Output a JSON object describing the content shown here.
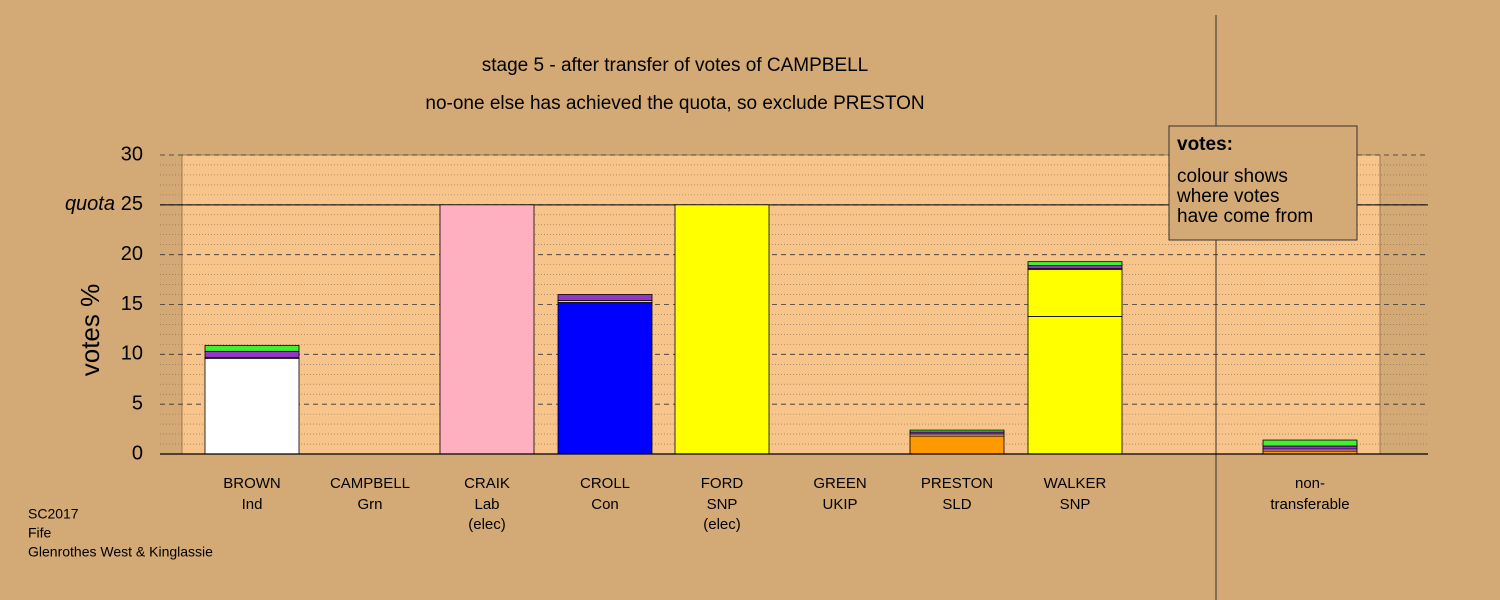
{
  "chart_data": {
    "type": "stacked-bar",
    "title": "stage 5 - after transfer of votes of CAMPBELL",
    "subtitle": "no-one else has achieved the quota, so exclude PRESTON",
    "y_label": "votes %",
    "categories": [
      "BROWN",
      "CAMPBELL",
      "CRAIK",
      "CROLL",
      "FORD",
      "GREEN",
      "PRESTON",
      "WALKER",
      "non-"
    ],
    "parties": [
      "Ind",
      "Grn",
      "Lab",
      "Con",
      "SNP",
      "UKIP",
      "SLD",
      "SNP",
      "transferable"
    ],
    "notes": [
      null,
      null,
      "(elec)",
      null,
      "(elec)",
      null,
      null,
      null,
      null
    ],
    "series": [
      {
        "colors": [
          "#ffffff",
          "#22cc22",
          "#ffb0c0",
          "#0000ff",
          "#ffff00",
          "#9933cc",
          "#ff9900",
          "#ffff00",
          "#ff9900"
        ],
        "values": [
          9.6,
          0,
          25,
          15.2,
          25,
          0,
          1.8,
          13.8,
          0.3
        ]
      },
      {
        "color": "#ffff00",
        "values": [
          0,
          0,
          0,
          0,
          0,
          0,
          0,
          4.7,
          0
        ]
      },
      {
        "color": "#ffb0c0",
        "values": [
          0.1,
          0,
          0,
          0.2,
          0,
          0,
          0.2,
          0.1,
          0.2
        ]
      },
      {
        "color": "#9933cc",
        "values": [
          0.6,
          0,
          0,
          0.6,
          0,
          0,
          0.2,
          0.3,
          0.3
        ]
      },
      {
        "color": "#44ee33",
        "values": [
          0.6,
          0,
          0,
          0,
          0,
          0,
          0.2,
          0.4,
          0.6
        ]
      }
    ],
    "ylim": [
      0,
      30
    ],
    "yticks": [
      0,
      5,
      10,
      15,
      20,
      25,
      30
    ],
    "quota": {
      "value": 25,
      "label": "quota"
    },
    "legend": {
      "title": "votes:",
      "lines": [
        "colour shows",
        "where votes",
        "have come from"
      ]
    },
    "footnote": [
      "SC2017",
      "Fife",
      "Glenrothes West & Kinglassie"
    ]
  }
}
